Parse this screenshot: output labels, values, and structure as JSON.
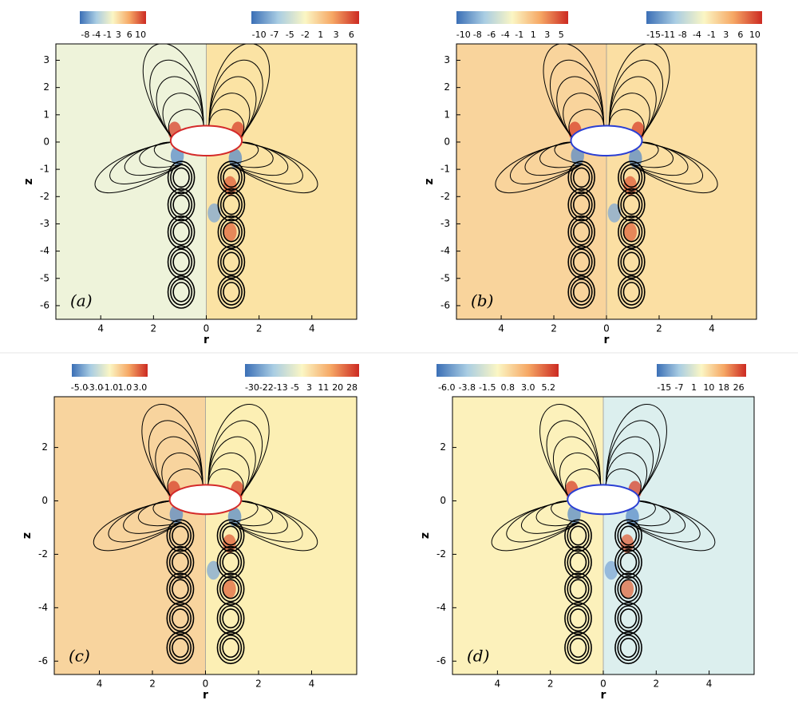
{
  "chart_data": [
    {
      "type": "contour",
      "label": "(a)",
      "xlabel": "r",
      "ylabel": "z",
      "xlim": [
        -5.7,
        5.7
      ],
      "ylim": [
        -6.5,
        3.6
      ],
      "xticks": [
        {
          "value": -4,
          "label": "4"
        },
        {
          "value": -2,
          "label": "2"
        },
        0,
        2,
        4
      ],
      "yticks": [
        3,
        2,
        1,
        0,
        -1,
        -2,
        -3,
        -4,
        -5,
        -6
      ],
      "left_color": "#eef3da",
      "right_color": "#fbe3a4",
      "outline_color": "#d42a2a",
      "colorbars": [
        {
          "ticks": [
            -8,
            -4,
            -1,
            3,
            6,
            10
          ]
        },
        {
          "ticks": [
            -10,
            -7,
            -5,
            -2,
            1,
            3,
            6
          ]
        }
      ]
    },
    {
      "type": "contour",
      "label": "(b)",
      "xlabel": "r",
      "ylabel": "z",
      "xlim": [
        -5.7,
        5.7
      ],
      "ylim": [
        -6.5,
        3.6
      ],
      "xticks": [
        {
          "value": -4,
          "label": "4"
        },
        {
          "value": -2,
          "label": "2"
        },
        0,
        2,
        4
      ],
      "yticks": [
        3,
        2,
        1,
        0,
        -1,
        -2,
        -3,
        -4,
        -5,
        -6
      ],
      "left_color": "#f9d49c",
      "right_color": "#fbdfa3",
      "outline_color": "#2a3fd4",
      "colorbars": [
        {
          "ticks": [
            -10,
            -8,
            -6,
            -4,
            -1,
            1,
            3,
            5
          ]
        },
        {
          "ticks": [
            -15,
            -11,
            -8,
            -4,
            -1,
            3,
            6,
            10
          ]
        }
      ]
    },
    {
      "type": "contour",
      "label": "(c)",
      "xlabel": "r",
      "ylabel": "z",
      "xlim": [
        -5.7,
        5.7
      ],
      "ylim": [
        -6.5,
        3.9
      ],
      "xticks": [
        {
          "value": -4,
          "label": "4"
        },
        {
          "value": -2,
          "label": "2"
        },
        0,
        2,
        4
      ],
      "yticks": [
        2,
        0,
        -2,
        -4,
        -6
      ],
      "left_color": "#f8d49e",
      "right_color": "#fcefb4",
      "outline_color": "#d42a2a",
      "colorbars": [
        {
          "ticks": [
            {
              "value": -5,
              "label": "-5.0"
            },
            {
              "value": -3,
              "label": "-3.0"
            },
            {
              "value": -1,
              "label": "-1.0"
            },
            {
              "value": 1,
              "label": "1.0"
            },
            {
              "value": 3,
              "label": "3.0"
            }
          ]
        },
        {
          "ticks": [
            -30,
            -22,
            -13,
            -5,
            3,
            11,
            20,
            28
          ]
        }
      ]
    },
    {
      "type": "contour",
      "label": "(d)",
      "xlabel": "r",
      "ylabel": "z",
      "xlim": [
        -5.7,
        5.7
      ],
      "ylim": [
        -6.5,
        3.9
      ],
      "xticks": [
        {
          "value": -4,
          "label": "4"
        },
        {
          "value": -2,
          "label": "2"
        },
        0,
        2,
        4
      ],
      "yticks": [
        2,
        0,
        -2,
        -4,
        -6
      ],
      "left_color": "#fcf1bb",
      "right_color": "#dcefee",
      "outline_color": "#2a3fd4",
      "colorbars": [
        {
          "ticks": [
            {
              "value": -6,
              "label": "-6.0"
            },
            -3.8,
            -1.5,
            0.8,
            {
              "value": 3,
              "label": "3.0"
            },
            5.2
          ]
        },
        {
          "ticks": [
            -15,
            -7,
            1,
            10,
            18,
            26
          ]
        }
      ]
    }
  ]
}
